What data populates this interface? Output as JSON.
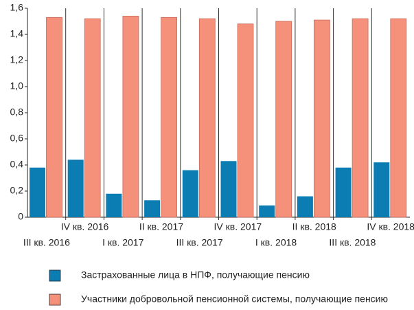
{
  "chart_data": {
    "type": "bar",
    "categories": [
      "III кв. 2016",
      "IV кв. 2016",
      "I кв. 2017",
      "II кв. 2017",
      "III кв. 2017",
      "IV кв. 2017",
      "I кв. 2018",
      "II кв. 2018",
      "III кв. 2018",
      "IV кв. 2018"
    ],
    "series": [
      {
        "name": "Застрахованные лица в НПФ, получающие пенсию",
        "color": "#0b7db3",
        "values": [
          0.38,
          0.44,
          0.18,
          0.13,
          0.36,
          0.43,
          0.09,
          0.16,
          0.38,
          0.42
        ]
      },
      {
        "name": "Участники добровольной пенсионной системы, получающие пенсию",
        "color": "#f5917b",
        "values": [
          1.53,
          1.52,
          1.54,
          1.53,
          1.52,
          1.48,
          1.5,
          1.51,
          1.52,
          1.52
        ]
      }
    ],
    "ylim": [
      0,
      1.6
    ],
    "yticks": [
      0,
      {
        "value": 0.2,
        "label": "0,2"
      },
      {
        "value": 0.4,
        "label": "0,4"
      },
      {
        "value": 0.6,
        "label": "0,6"
      },
      {
        "value": 0.8,
        "label": "0,8"
      },
      {
        "value": 1.0,
        "label": "1,0"
      },
      {
        "value": 1.2,
        "label": "1,2"
      },
      {
        "value": 1.4,
        "label": "1,4"
      },
      {
        "value": 1.6,
        "label": "1,6"
      }
    ]
  }
}
